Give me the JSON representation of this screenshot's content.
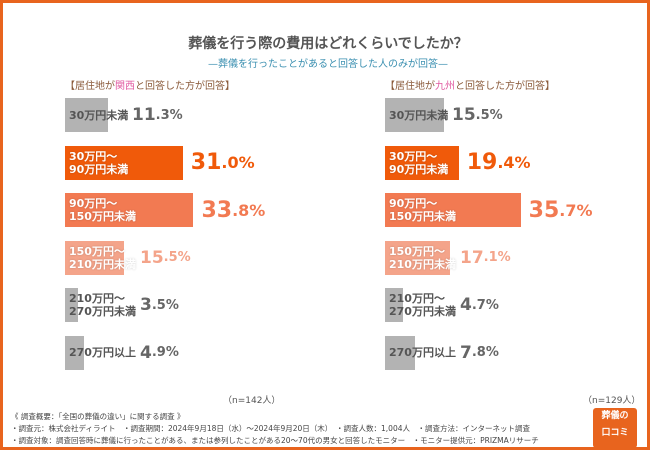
{
  "title": "葬儀を行う際の費用はどれくらいでしたか？",
  "subtitle": "—葬儀を行ったことがあると回答した人のみが回答—",
  "colors": {
    "gray": "#b3b3b3",
    "c1": "#f05a0a",
    "c2": "#f27a52",
    "c3": "#f4a48a",
    "frame": "#e8641e"
  },
  "chart_data": [
    {
      "type": "bar",
      "orientation": "horizontal",
      "title_pre": "【居住地が",
      "title_hl": "関西",
      "title_post": "と回答した方が回答】",
      "categories": [
        "30万円未満",
        "30万円～\n90万円未満",
        "90万円～\n150万円未満",
        "150万円～\n210万円未満",
        "210万円～\n270万円未満",
        "270万円以上"
      ],
      "values": [
        11.3,
        31.0,
        33.8,
        15.5,
        3.5,
        4.9
      ],
      "unit": "%",
      "n": "（n=142人）"
    },
    {
      "type": "bar",
      "orientation": "horizontal",
      "title_pre": "【居住地が",
      "title_hl": "九州",
      "title_post": "と回答した方が回答】",
      "categories": [
        "30万円未満",
        "30万円～\n90万円未満",
        "90万円～\n150万円未満",
        "150万円～\n210万円未満",
        "210万円～\n270万円未満",
        "270万円以上"
      ],
      "values": [
        15.5,
        19.4,
        35.7,
        17.1,
        4.7,
        7.8
      ],
      "unit": "%",
      "n": "（n=129人）"
    }
  ],
  "notes": [
    "《 調査概要：「全国の葬儀の違い」に関する調査 》",
    "・調査元：株式会社ディライト　・調査期間：2024年9月18日（水）～2024年9月20日（木）　・調査人数：1,004人　・調査方法：インターネット調査",
    "・調査対象：調査回答時に葬儀に行ったことがある、または参列したことがある20～70代の男女と回答したモニター　・モニター提供元：PRIZMAリサーチ"
  ],
  "logo": {
    "line1": "葬儀の",
    "line2": "口コミ"
  }
}
